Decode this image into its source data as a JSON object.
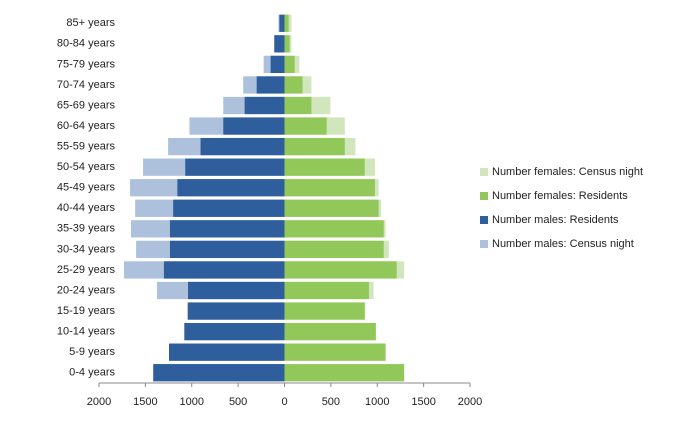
{
  "chart_data": {
    "type": "pyramid",
    "categories": [
      "0-4 years",
      "5-9 years",
      "10-14 years",
      "15-19 years",
      "20-24 years",
      "25-29 years",
      "30-34 years",
      "35-39 years",
      "40-44 years",
      "45-49 years",
      "50-54 years",
      "55-59 years",
      "60-64 years",
      "65-69 years",
      "70-74 years",
      "75-79 years",
      "80-84 years",
      "85+ years"
    ],
    "series": [
      {
        "name": "Number females: Census night",
        "color": "#d1e6bd",
        "values": [
          1290,
          1090,
          985,
          870,
          960,
          1290,
          1125,
          1090,
          1040,
          1015,
          975,
          765,
          650,
          495,
          290,
          160,
          75,
          75
        ]
      },
      {
        "name": "Number females: Residents",
        "color": "#92c85a",
        "values": [
          1290,
          1090,
          985,
          865,
          910,
          1210,
          1070,
          1070,
          1015,
          975,
          865,
          650,
          455,
          290,
          195,
          110,
          55,
          45
        ]
      },
      {
        "name": "Number males: Residents",
        "color": "#2e5e9b",
        "values": [
          -1415,
          -1245,
          -1080,
          -1040,
          -1040,
          -1300,
          -1235,
          -1235,
          -1200,
          -1155,
          -1070,
          -905,
          -660,
          -430,
          -300,
          -150,
          -110,
          -55
        ]
      },
      {
        "name": "Number males: Census night",
        "color": "#adc0dc",
        "values": [
          -1415,
          -1245,
          -1080,
          -1050,
          -1375,
          -1730,
          -1600,
          -1655,
          -1610,
          -1665,
          -1525,
          -1255,
          -1025,
          -660,
          -445,
          -225,
          -110,
          -65
        ]
      }
    ],
    "xlim": [
      -2000,
      2000
    ],
    "xticks": [
      {
        "value": -2000,
        "label": "2000"
      },
      {
        "value": -1500,
        "label": "1500"
      },
      {
        "value": -1000,
        "label": "1000"
      },
      {
        "value": -500,
        "label": "500"
      },
      0,
      500,
      1000,
      1500,
      2000
    ],
    "legend": "right"
  }
}
